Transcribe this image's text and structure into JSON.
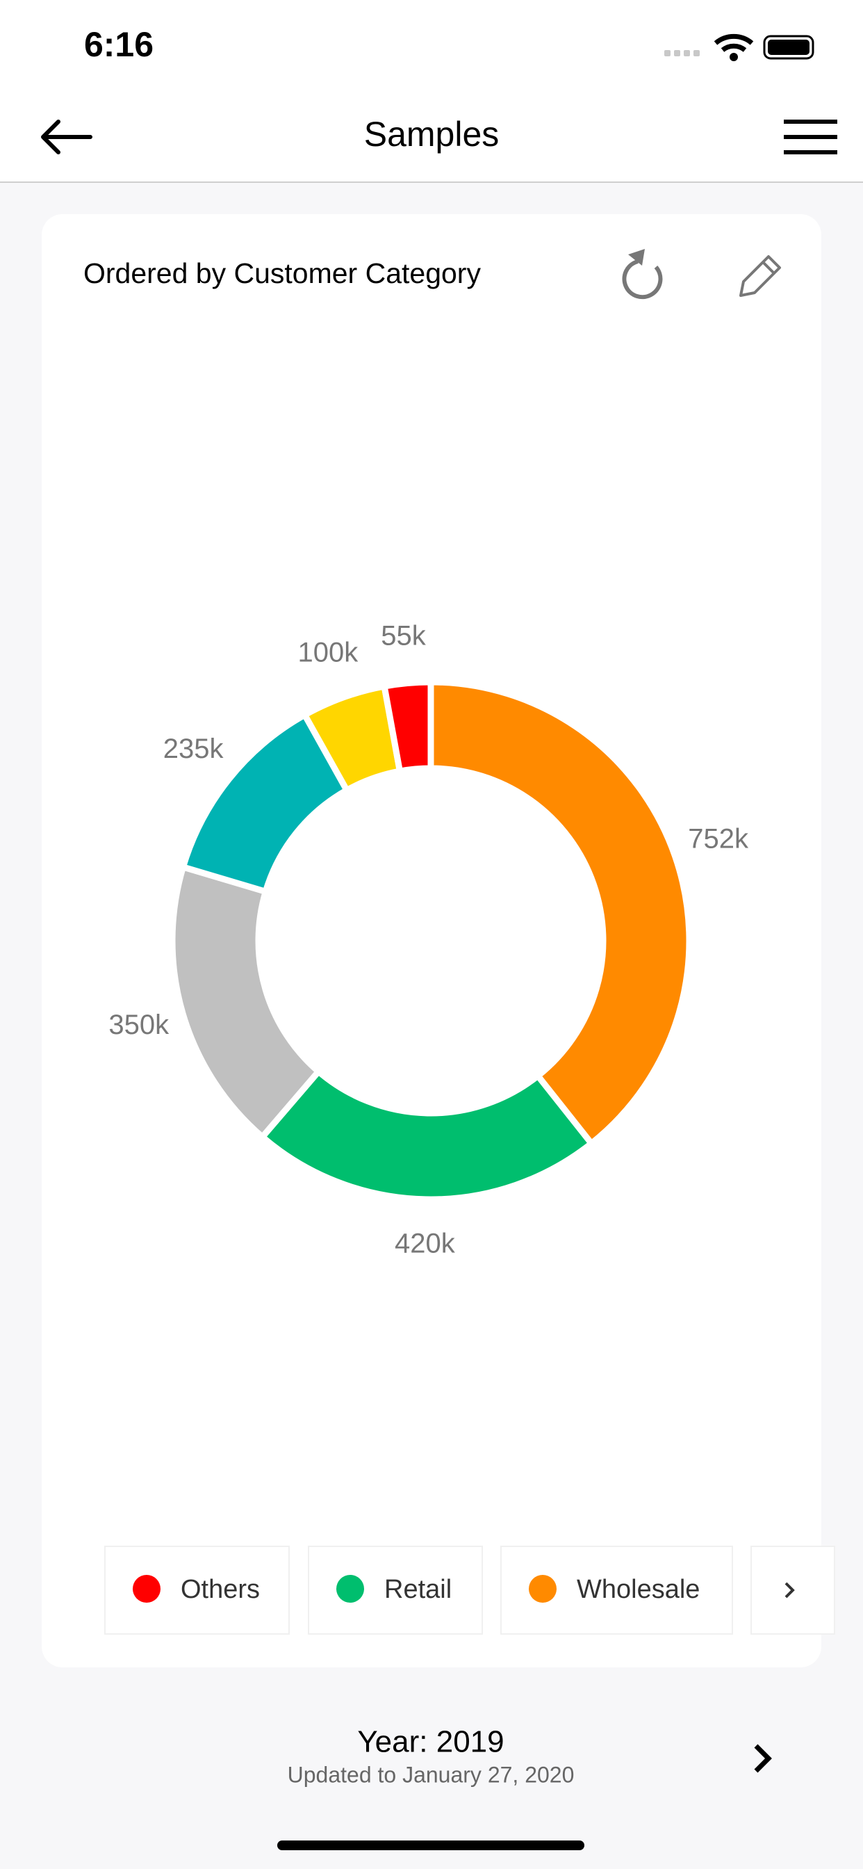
{
  "status_bar": {
    "time": "6:16"
  },
  "nav": {
    "title": "Samples"
  },
  "chart_data": {
    "type": "pie",
    "title": "Ordered by Customer Category",
    "categories": [
      "Wholesale",
      "Retail",
      null,
      null,
      null,
      "Others"
    ],
    "values": [
      752000,
      420000,
      350000,
      235000,
      100000,
      55000
    ],
    "value_labels": [
      "752k",
      "420k",
      "350k",
      "235k",
      "100k",
      "55k"
    ],
    "colors": [
      "#ff8a00",
      "#00be6e",
      "#c0c0c0",
      "#00b3b3",
      "#ffd600",
      "#ff0000"
    ],
    "donut": true
  },
  "footer": {
    "year": "Year: 2019",
    "updated": "Updated to  January 27, 2020"
  }
}
